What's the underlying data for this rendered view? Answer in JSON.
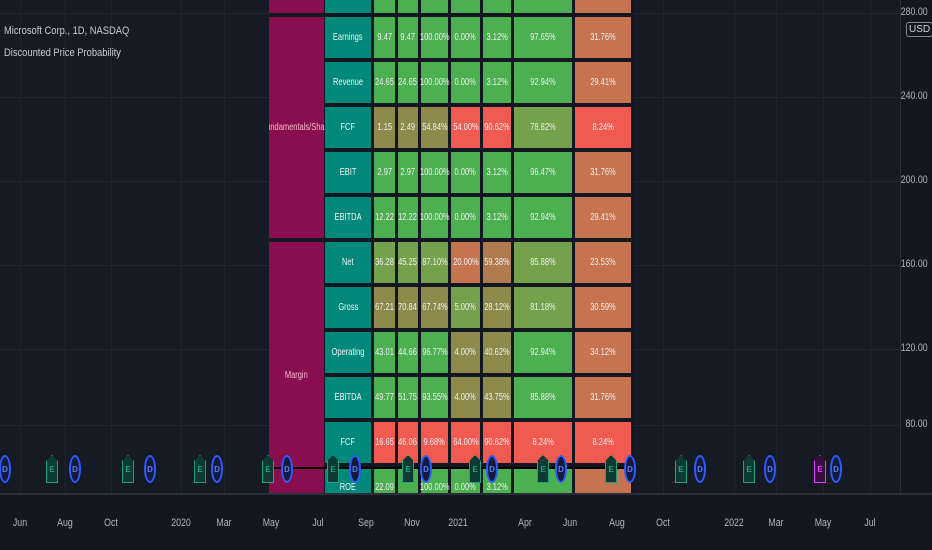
{
  "header": {
    "symbol": "Microsoft Corp., 1D, NASDAQ",
    "indicator": "Discounted Price Probability"
  },
  "price_axis": {
    "currency": "USD",
    "labels": [
      "280.00",
      "240.00",
      "200.00",
      "160.00",
      "120.00",
      "80.00"
    ]
  },
  "time_axis": {
    "labels": [
      "Jun",
      "Aug",
      "Oct",
      "2020",
      "Mar",
      "May",
      "Jul",
      "Sep",
      "Nov",
      "2021",
      "Apr",
      "Jun",
      "Aug",
      "Oct",
      "2022",
      "Mar",
      "May",
      "Jul"
    ]
  },
  "colors": {
    "green": "#4caf50",
    "olive": "#8d8a4c",
    "olive_green": "#75a04c",
    "red": "#f05a50",
    "salmon": "#c6744f",
    "amber": "#b07a4f",
    "teal": "#00897b",
    "maroon": "#880e4f"
  },
  "table": {
    "groups": [
      {
        "label": "",
        "rows": 1
      },
      {
        "label": "Fundamentals/Share",
        "rows": 5
      },
      {
        "label": "Margin",
        "rows": 6
      }
    ],
    "rows": [
      {
        "label": "",
        "cells": [
          "",
          "",
          "",
          "",
          "",
          "",
          ""
        ],
        "colors": [
          "green",
          "green",
          "green",
          "green",
          "green",
          "green",
          "salmon"
        ]
      },
      {
        "label": "Earnings",
        "cells": [
          "9.47",
          "9.47",
          "100.00%",
          "0.00%",
          "3.12%",
          "97.65%",
          "31.76%"
        ],
        "colors": [
          "green",
          "green",
          "green",
          "green",
          "green",
          "green",
          "salmon"
        ]
      },
      {
        "label": "Revenue",
        "cells": [
          "24.65",
          "24.65",
          "100.00%",
          "0.00%",
          "3.12%",
          "92.94%",
          "29.41%"
        ],
        "colors": [
          "green",
          "green",
          "green",
          "green",
          "green",
          "green",
          "salmon"
        ]
      },
      {
        "label": "FCF",
        "cells": [
          "1.15",
          "2.49",
          "54.84%",
          "54.00%",
          "90.62%",
          "78.82%",
          "8.24%"
        ],
        "colors": [
          "olive",
          "olive",
          "olive",
          "red",
          "red",
          "olive_green",
          "red"
        ]
      },
      {
        "label": "EBIT",
        "cells": [
          "2.97",
          "2.97",
          "100.00%",
          "0.00%",
          "3.12%",
          "96.47%",
          "31.76%"
        ],
        "colors": [
          "green",
          "green",
          "green",
          "green",
          "green",
          "green",
          "salmon"
        ]
      },
      {
        "label": "EBITDA",
        "cells": [
          "12.22",
          "12.22",
          "100.00%",
          "0.00%",
          "3.12%",
          "92.94%",
          "29.41%"
        ],
        "colors": [
          "green",
          "green",
          "green",
          "green",
          "green",
          "green",
          "salmon"
        ]
      },
      {
        "label": "Net",
        "cells": [
          "36.28",
          "45.25",
          "87.10%",
          "20.00%",
          "59.38%",
          "85.88%",
          "23.53%"
        ],
        "colors": [
          "olive_green",
          "olive_green",
          "olive_green",
          "salmon",
          "amber",
          "olive_green",
          "salmon"
        ]
      },
      {
        "label": "Gross",
        "cells": [
          "67.21",
          "70.84",
          "67.74%",
          "5.00%",
          "28.12%",
          "81.18%",
          "30.59%"
        ],
        "colors": [
          "olive",
          "olive",
          "olive",
          "olive_green",
          "olive",
          "olive_green",
          "salmon"
        ]
      },
      {
        "label": "Operating",
        "cells": [
          "43.01",
          "44.66",
          "96.77%",
          "4.00%",
          "40.62%",
          "92.94%",
          "34.12%"
        ],
        "colors": [
          "green",
          "green",
          "green",
          "olive",
          "olive",
          "green",
          "salmon"
        ]
      },
      {
        "label": "EBITDA",
        "cells": [
          "49.77",
          "51.75",
          "93.55%",
          "4.00%",
          "43.75%",
          "85.88%",
          "31.76%"
        ],
        "colors": [
          "green",
          "green",
          "green",
          "olive",
          "olive",
          "green",
          "salmon"
        ]
      },
      {
        "label": "FCF",
        "cells": [
          "16.65",
          "46.06",
          "9.68%",
          "64.00%",
          "90.62%",
          "8.24%",
          "8.24%"
        ],
        "colors": [
          "red",
          "red",
          "red",
          "red",
          "red",
          "red",
          "red"
        ]
      },
      {
        "label": "ROE",
        "cells": [
          "22.09",
          "",
          "100.00%",
          "0.00%",
          "3.12%",
          "",
          ""
        ],
        "colors": [
          "green",
          "green",
          "green",
          "green",
          "green",
          "green",
          "salmon"
        ]
      }
    ]
  },
  "markers": [
    {
      "type": "D"
    },
    {
      "type": "E"
    },
    {
      "type": "D"
    },
    {
      "type": "E"
    },
    {
      "type": "D"
    },
    {
      "type": "E"
    },
    {
      "type": "D"
    },
    {
      "type": "E"
    },
    {
      "type": "D"
    },
    {
      "type": "E"
    },
    {
      "type": "D"
    },
    {
      "type": "E"
    },
    {
      "type": "D"
    },
    {
      "type": "E"
    },
    {
      "type": "D"
    },
    {
      "type": "E"
    },
    {
      "type": "D"
    },
    {
      "type": "E"
    },
    {
      "type": "D"
    },
    {
      "type": "E"
    },
    {
      "type": "D"
    },
    {
      "type": "E"
    },
    {
      "type": "D"
    },
    {
      "type": "E",
      "highlight": true
    },
    {
      "type": "D"
    }
  ]
}
